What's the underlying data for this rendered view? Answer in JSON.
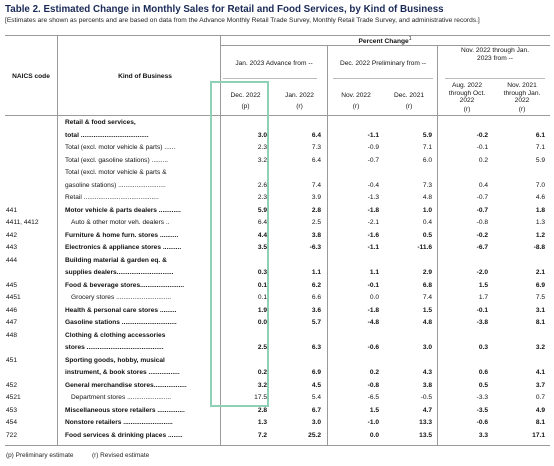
{
  "title": "Table 2.  Estimated Change in Monthly Sales for Retail and Food Services, by Kind of Business",
  "subtitle": "[Estimates are shown as percents and are based on data from the Advance Monthly Retail Trade Survey,  Monthly Retail Trade Survey, and administrative records.]",
  "headers": {
    "percent_change": "Percent Change",
    "footnote_mark": "1",
    "naics": "NAICS code",
    "kind": "Kind of Business",
    "grp1": "Jan. 2023 Advance from --",
    "grp2": "Dec. 2022 Preliminary from --",
    "grp3": "Nov. 2022 through Jan. 2023 from --",
    "col1": "Dec. 2022",
    "col1r": "(p)",
    "col2": "Jan. 2022",
    "col2r": "(r)",
    "col3": "Nov. 2022",
    "col3r": "(r)",
    "col4": "Dec. 2021",
    "col4r": "(r)",
    "col5": "Aug. 2022 through Oct. 2022",
    "col5r": "(r)",
    "col6": "Nov. 2021 through Jan. 2022",
    "col6r": "(r)"
  },
  "rows": [
    {
      "code": "",
      "kind": "Retail & food services,",
      "bold": true,
      "values": [
        "",
        "",
        "",
        "",
        "",
        ""
      ]
    },
    {
      "code": "",
      "kind": "total .....................................",
      "bold": true,
      "values": [
        "3.0",
        "6.4",
        "-1.1",
        "5.9",
        "-0.2",
        "6.1"
      ]
    },
    {
      "code": "",
      "kind": "Total (excl. motor vehicle & parts) ......",
      "bold": false,
      "values": [
        "2.3",
        "7.3",
        "-0.9",
        "7.1",
        "-0.1",
        "7.1"
      ]
    },
    {
      "code": "",
      "kind": "Total (excl. gasoline stations) .........",
      "bold": false,
      "values": [
        "3.2",
        "6.4",
        "-0.7",
        "6.0",
        "0.2",
        "5.9"
      ]
    },
    {
      "code": "",
      "kind": "Total (excl. motor vehicle & parts &",
      "bold": false,
      "values": [
        "",
        "",
        "",
        "",
        "",
        ""
      ]
    },
    {
      "code": "",
      "kind": "gasoline stations) ..........................",
      "bold": false,
      "values": [
        "2.6",
        "7.4",
        "-0.4",
        "7.3",
        "0.4",
        "7.0"
      ]
    },
    {
      "code": "",
      "kind": "Retail .........................................",
      "bold": false,
      "values": [
        "2.3",
        "3.9",
        "-1.3",
        "4.8",
        "-0.7",
        "4.6"
      ]
    },
    {
      "code": "441",
      "kind": "Motor vehicle & parts dealers ............",
      "bold": true,
      "values": [
        "5.9",
        "2.8",
        "-1.8",
        "1.0",
        "-0.7",
        "1.8"
      ]
    },
    {
      "code": "4411, 4412",
      "kind": "Auto & other motor veh. dealers ..",
      "bold": false,
      "sub": true,
      "values": [
        "6.4",
        "2.5",
        "-2.1",
        "0.4",
        "-0.8",
        "1.3"
      ]
    },
    {
      "code": "442",
      "kind": "Furniture & home furn. stores ..........",
      "bold": true,
      "values": [
        "4.4",
        "3.8",
        "-1.6",
        "0.5",
        "-0.2",
        "1.2"
      ]
    },
    {
      "code": "443",
      "kind": "Electronics & appliance stores ..........",
      "bold": true,
      "values": [
        "3.5",
        "-6.3",
        "-1.1",
        "-11.6",
        "-6.7",
        "-8.8"
      ]
    },
    {
      "code": "444",
      "kind": "Building material & garden eq. &",
      "bold": true,
      "values": [
        "",
        "",
        "",
        "",
        "",
        ""
      ]
    },
    {
      "code": "",
      "kind": "supplies dealers...............................",
      "bold": true,
      "values": [
        "0.3",
        "1.1",
        "1.1",
        "2.9",
        "-2.0",
        "2.1"
      ]
    },
    {
      "code": "445",
      "kind": "Food & beverage stores........................",
      "bold": true,
      "values": [
        "0.1",
        "6.2",
        "-0.1",
        "6.8",
        "1.5",
        "6.9"
      ]
    },
    {
      "code": "4451",
      "kind": "Grocery stores ..............................",
      "bold": false,
      "sub": true,
      "values": [
        "0.1",
        "6.6",
        "0.0",
        "7.4",
        "1.7",
        "7.5"
      ]
    },
    {
      "code": "446",
      "kind": "Health & personal care stores .........",
      "bold": true,
      "values": [
        "1.9",
        "3.6",
        "-1.8",
        "1.5",
        "-0.1",
        "3.1"
      ]
    },
    {
      "code": "447",
      "kind": "Gasoline stations ..............................",
      "bold": true,
      "values": [
        "0.0",
        "5.7",
        "-4.8",
        "4.8",
        "-3.8",
        "8.1"
      ]
    },
    {
      "code": "448",
      "kind": "Clothing & clothing accessories",
      "bold": true,
      "values": [
        "",
        "",
        "",
        "",
        "",
        ""
      ]
    },
    {
      "code": "",
      "kind": "stores ..........................................",
      "bold": true,
      "values": [
        "2.5",
        "6.3",
        "-0.6",
        "3.0",
        "0.3",
        "3.2"
      ]
    },
    {
      "code": "451",
      "kind": "Sporting goods, hobby, musical",
      "bold": true,
      "values": [
        "",
        "",
        "",
        "",
        "",
        ""
      ]
    },
    {
      "code": "",
      "kind": "instrument, & book stores .................",
      "bold": true,
      "values": [
        "0.2",
        "6.9",
        "0.2",
        "4.3",
        "0.6",
        "4.1"
      ]
    },
    {
      "code": "452",
      "kind": "General merchandise stores..................",
      "bold": true,
      "values": [
        "3.2",
        "4.5",
        "-0.8",
        "3.8",
        "0.5",
        "3.7"
      ]
    },
    {
      "code": "4521",
      "kind": "Department stores ........................",
      "bold": false,
      "sub": true,
      "values": [
        "17.5",
        "5.4",
        "-6.5",
        "-0.5",
        "-3.3",
        "0.7"
      ]
    },
    {
      "code": "453",
      "kind": "Miscellaneous store retailers ...............",
      "bold": true,
      "values": [
        "2.8",
        "6.7",
        "1.5",
        "4.7",
        "-3.5",
        "4.9"
      ]
    },
    {
      "code": "454",
      "kind": "Nonstore retailers ...........................",
      "bold": true,
      "values": [
        "1.3",
        "3.0",
        "-1.0",
        "13.3",
        "-0.6",
        "8.1"
      ]
    },
    {
      "code": "722",
      "kind": "Food services & drinking places ........",
      "bold": true,
      "values": [
        "7.2",
        "25.2",
        "0.0",
        "13.5",
        "3.3",
        "17.1"
      ]
    }
  ],
  "footer": {
    "p": "(p)  Preliminary estimate",
    "r": "(r)  Revised estimate"
  }
}
